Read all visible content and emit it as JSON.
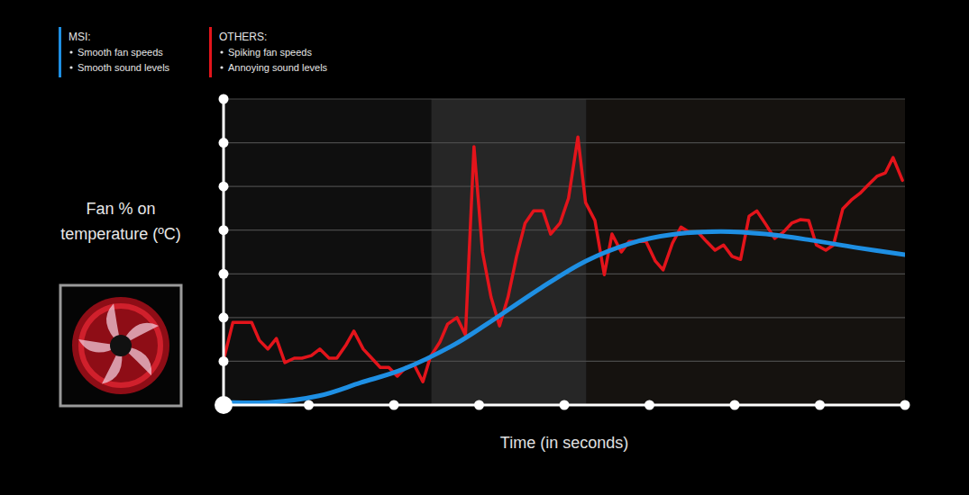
{
  "chart_data": {
    "type": "line",
    "x_label": "Time (in seconds)",
    "y_label": "Fan % on temperature (ºC)",
    "xlim": [
      0,
      8
    ],
    "xticks": [
      0,
      1,
      2,
      3,
      4,
      5,
      6,
      7,
      8
    ],
    "ylim": [
      0,
      7
    ],
    "yticks": [
      0,
      1,
      2,
      3,
      4,
      5,
      6,
      7
    ],
    "grid": true,
    "tick_labels": false,
    "legend": "top-left",
    "bands": [
      {
        "x": [
          2.44,
          4.26
        ],
        "color": "#262626"
      },
      {
        "x": [
          4.26,
          8
        ],
        "color": "#15120f"
      }
    ],
    "series": [
      {
        "name": "MSI:",
        "color": "#1e8fe3",
        "line_style": "smooth",
        "description": [
          "Smooth fan speeds",
          "Smooth sound levels"
        ],
        "x": [
          0,
          0.55,
          1.12,
          1.61,
          2.11,
          2.67,
          3.09,
          3.72,
          4.25,
          4.78,
          5.31,
          5.84,
          6.37,
          6.9,
          7.43,
          8.0
        ],
        "values": [
          0.06,
          0.06,
          0.21,
          0.51,
          0.82,
          1.34,
          1.85,
          2.67,
          3.29,
          3.7,
          3.91,
          3.97,
          3.91,
          3.77,
          3.6,
          3.44
        ]
      },
      {
        "name": "OTHERS:",
        "color": "#e3141b",
        "line_style": "solid",
        "description": [
          "Spiking fan speeds",
          "Annoying sound levels"
        ],
        "x": [
          0,
          0.11,
          0.33,
          0.42,
          0.52,
          0.62,
          0.72,
          0.83,
          0.92,
          1.03,
          1.13,
          1.24,
          1.33,
          1.44,
          1.53,
          1.64,
          1.74,
          1.84,
          1.94,
          2.04,
          2.14,
          2.24,
          2.34,
          2.43,
          2.54,
          2.63,
          2.74,
          2.84,
          2.94,
          3.04,
          3.14,
          3.24,
          3.34,
          3.44,
          3.54,
          3.64,
          3.75,
          3.84,
          3.95,
          4.05,
          4.16,
          4.25,
          4.36,
          4.47,
          4.56,
          4.67,
          4.76,
          4.87,
          4.96,
          5.07,
          5.16,
          5.27,
          5.37,
          5.47,
          5.57,
          5.67,
          5.77,
          5.87,
          5.97,
          6.07,
          6.17,
          6.26,
          6.37,
          6.47,
          6.57,
          6.67,
          6.77,
          6.87,
          6.96,
          7.07,
          7.16,
          7.27,
          7.37,
          7.47,
          7.57,
          7.67,
          7.77,
          7.86,
          7.97
        ],
        "values": [
          1.03,
          1.89,
          1.89,
          1.48,
          1.28,
          1.52,
          0.97,
          1.07,
          1.07,
          1.13,
          1.28,
          1.07,
          1.07,
          1.38,
          1.69,
          1.28,
          1.07,
          0.86,
          0.86,
          0.66,
          0.86,
          0.91,
          0.53,
          1.11,
          1.44,
          1.85,
          2.0,
          1.6,
          5.91,
          3.5,
          2.47,
          1.81,
          2.47,
          3.4,
          4.16,
          4.44,
          4.44,
          3.91,
          4.16,
          4.73,
          6.13,
          4.63,
          4.22,
          2.98,
          3.91,
          3.5,
          3.74,
          3.74,
          3.74,
          3.29,
          3.09,
          3.7,
          4.07,
          3.95,
          3.95,
          3.74,
          3.54,
          3.66,
          3.4,
          3.33,
          4.32,
          4.44,
          4.12,
          3.81,
          3.95,
          4.16,
          4.24,
          4.22,
          3.66,
          3.54,
          3.66,
          4.49,
          4.69,
          4.84,
          5.04,
          5.23,
          5.31,
          5.66,
          5.14
        ]
      }
    ]
  }
}
